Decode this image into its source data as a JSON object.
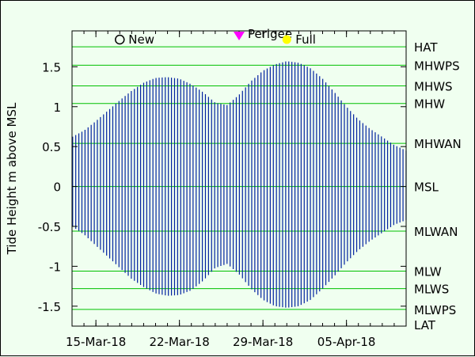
{
  "chart_data": {
    "type": "line",
    "ylabel": "Tide Height m above MSL",
    "xlabel": "",
    "ylim": [
      -1.75,
      1.95
    ],
    "xlim": [
      "2018-03-13",
      "2018-04-10"
    ],
    "x_ticks": [
      {
        "date": "2018-03-15",
        "label": "15-Mar-18"
      },
      {
        "date": "2018-03-22",
        "label": "22-Mar-18"
      },
      {
        "date": "2018-03-29",
        "label": "29-Mar-18"
      },
      {
        "date": "2018-04-05",
        "label": "05-Apr-18"
      }
    ],
    "y_ticks": [
      -1.5,
      -1,
      -0.5,
      0,
      0.5,
      1,
      1.5
    ],
    "y_tick_labels": [
      "-1.5",
      "-1",
      "-0.5",
      "0",
      "0.5",
      "1",
      "1.5"
    ],
    "tide_levels": [
      {
        "name": "HAT",
        "value": 1.75,
        "line": true
      },
      {
        "name": "MHWPS",
        "value": 1.52,
        "line": true
      },
      {
        "name": "MHWS",
        "value": 1.26,
        "line": true
      },
      {
        "name": "MHW",
        "value": 1.04,
        "line": true
      },
      {
        "name": "MHWAN",
        "value": 0.54,
        "line": true
      },
      {
        "name": "MSL",
        "value": 0.0,
        "line": true
      },
      {
        "name": "MLWAN",
        "value": -0.56,
        "line": true
      },
      {
        "name": "MLW",
        "value": -1.06,
        "line": true
      },
      {
        "name": "MLWS",
        "value": -1.28,
        "line": true
      },
      {
        "name": "MLWPS",
        "value": -1.54,
        "line": true
      },
      {
        "name": "LAT",
        "value": -1.75,
        "line": false
      }
    ],
    "series": [
      {
        "color": "#00209f",
        "cycles_per_day": 1.9323,
        "first_date": "2018-03-13",
        "last_date": "2018-04-10",
        "envelope": [
          {
            "date": "2018-03-13",
            "high": 0.62,
            "low": -0.5
          },
          {
            "date": "2018-03-14",
            "high": 0.7,
            "low": -0.6
          },
          {
            "date": "2018-03-15",
            "high": 0.82,
            "low": -0.74
          },
          {
            "date": "2018-03-16",
            "high": 0.95,
            "low": -0.88
          },
          {
            "date": "2018-03-17",
            "high": 1.08,
            "low": -1.02
          },
          {
            "date": "2018-03-18",
            "high": 1.2,
            "low": -1.16
          },
          {
            "date": "2018-03-19",
            "high": 1.3,
            "low": -1.26
          },
          {
            "date": "2018-03-20",
            "high": 1.36,
            "low": -1.34
          },
          {
            "date": "2018-03-21",
            "high": 1.37,
            "low": -1.37
          },
          {
            "date": "2018-03-22",
            "high": 1.35,
            "low": -1.36
          },
          {
            "date": "2018-03-23",
            "high": 1.28,
            "low": -1.3
          },
          {
            "date": "2018-03-24",
            "high": 1.18,
            "low": -1.18
          },
          {
            "date": "2018-03-25",
            "high": 1.05,
            "low": -1.02
          },
          {
            "date": "2018-03-26",
            "high": 1.02,
            "low": -0.97
          },
          {
            "date": "2018-03-27",
            "high": 1.15,
            "low": -1.1
          },
          {
            "date": "2018-03-28",
            "high": 1.32,
            "low": -1.28
          },
          {
            "date": "2018-03-29",
            "high": 1.45,
            "low": -1.42
          },
          {
            "date": "2018-03-30",
            "high": 1.53,
            "low": -1.5
          },
          {
            "date": "2018-03-31",
            "high": 1.57,
            "low": -1.52
          },
          {
            "date": "2018-04-01",
            "high": 1.55,
            "low": -1.5
          },
          {
            "date": "2018-04-02",
            "high": 1.48,
            "low": -1.42
          },
          {
            "date": "2018-04-03",
            "high": 1.35,
            "low": -1.28
          },
          {
            "date": "2018-04-04",
            "high": 1.18,
            "low": -1.12
          },
          {
            "date": "2018-04-05",
            "high": 1.0,
            "low": -0.95
          },
          {
            "date": "2018-04-06",
            "high": 0.84,
            "low": -0.8
          },
          {
            "date": "2018-04-07",
            "high": 0.72,
            "low": -0.68
          },
          {
            "date": "2018-04-08",
            "high": 0.62,
            "low": -0.58
          },
          {
            "date": "2018-04-09",
            "high": 0.52,
            "low": -0.48
          },
          {
            "date": "2018-04-10",
            "high": 0.45,
            "low": -0.42
          }
        ]
      }
    ],
    "annotations": [
      {
        "label": "New",
        "date": "2018-03-17",
        "marker": "open-circle",
        "color": "#000000"
      },
      {
        "label": "Perigee",
        "date": "2018-03-27",
        "marker": "down-triangle",
        "color": "#ff00ff"
      },
      {
        "label": "Full",
        "date": "2018-03-31",
        "marker": "filled-circle",
        "color": "#ffff00"
      }
    ],
    "grid": false,
    "colors": {
      "background": "#f0fff0",
      "level_lines": "#00c000",
      "series": "#00209f"
    }
  }
}
